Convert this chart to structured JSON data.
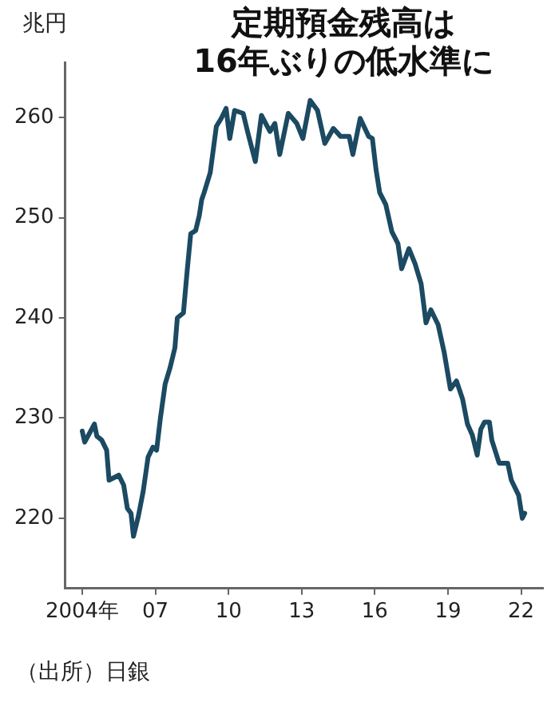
{
  "chart_data": {
    "type": "line",
    "title": "定期預金残高は\n16年ぶりの低水準に",
    "ylabel": "兆円",
    "annotations": [
      "（出所）日銀"
    ],
    "xlim": [
      2003.3,
      2022.9
    ],
    "xticks": [
      {
        "value": 2004,
        "label": "2004年"
      },
      {
        "value": 2007,
        "label": "07"
      },
      {
        "value": 2010,
        "label": "10"
      },
      {
        "value": 2013,
        "label": "13"
      },
      {
        "value": 2016,
        "label": "16"
      },
      {
        "value": 2019,
        "label": "19"
      },
      {
        "value": 2022,
        "label": "22"
      }
    ],
    "ylim": [
      213,
      265.5
    ],
    "yticks": [
      220,
      230,
      240,
      250,
      260
    ],
    "marker": "none",
    "legend": false,
    "series": [
      {
        "color": "#1b4a62",
        "x": [
          2004.0,
          2004.1,
          2004.5,
          2004.6,
          2004.8,
          2005.0,
          2005.1,
          2005.5,
          2005.7,
          2005.85,
          2006.0,
          2006.1,
          2006.3,
          2006.5,
          2006.7,
          2006.9,
          2007.05,
          2007.2,
          2007.4,
          2007.6,
          2007.8,
          2007.9,
          2008.15,
          2008.3,
          2008.45,
          2008.65,
          2008.8,
          2008.9,
          2009.0,
          2009.25,
          2009.5,
          2009.7,
          2009.9,
          2010.05,
          2010.25,
          2010.6,
          2010.8,
          2011.1,
          2011.35,
          2011.7,
          2011.9,
          2012.1,
          2012.45,
          2012.8,
          2013.05,
          2013.35,
          2013.65,
          2013.95,
          2014.3,
          2014.6,
          2014.95,
          2015.1,
          2015.4,
          2015.75,
          2015.9,
          2016.05,
          2016.2,
          2016.45,
          2016.7,
          2016.95,
          2017.1,
          2017.4,
          2017.65,
          2017.9,
          2018.1,
          2018.3,
          2018.6,
          2018.85,
          2019.1,
          2019.35,
          2019.6,
          2019.8,
          2020.0,
          2020.2,
          2020.35,
          2020.5,
          2020.7,
          2020.8,
          2021.1,
          2021.45,
          2021.6,
          2021.9,
          2022.05,
          2022.15
        ],
        "values": [
          228.7,
          227.6,
          229.4,
          228.2,
          227.8,
          226.8,
          223.8,
          224.3,
          223.3,
          221.0,
          220.5,
          218.2,
          220.2,
          222.7,
          226.1,
          227.1,
          226.8,
          229.9,
          233.4,
          235.0,
          237.0,
          240.0,
          240.5,
          244.6,
          248.4,
          248.7,
          250.2,
          251.8,
          252.5,
          254.5,
          259.1,
          259.9,
          260.9,
          257.9,
          260.7,
          260.4,
          258.4,
          255.6,
          260.2,
          258.6,
          259.4,
          256.3,
          260.4,
          259.4,
          257.9,
          261.7,
          260.7,
          257.4,
          258.9,
          258.1,
          258.1,
          256.3,
          259.9,
          258.1,
          257.9,
          254.8,
          252.5,
          251.3,
          248.6,
          247.4,
          244.9,
          246.9,
          245.4,
          243.4,
          239.5,
          240.8,
          239.3,
          236.5,
          232.9,
          233.7,
          231.9,
          229.4,
          228.3,
          226.3,
          228.9,
          229.6,
          229.6,
          227.8,
          225.5,
          225.5,
          223.8,
          222.3,
          220.0,
          220.5
        ]
      }
    ]
  }
}
